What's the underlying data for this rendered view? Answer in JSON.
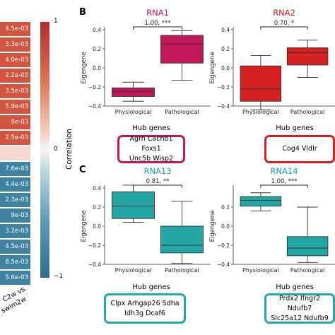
{
  "heatmap": {
    "values": [
      "4.5e-03",
      "3.3e-03",
      "4.0e-03",
      "2.2e-02",
      "3.5e-03",
      "5.9e-03",
      "9e-03",
      "2.5e-03",
      "",
      "7.6e-03",
      "4.4e-03",
      "2.3e-03",
      "9e-03",
      "3.2e-03",
      "4.5e-03",
      "8.5e-03",
      "5.6e-03"
    ],
    "colors": [
      "#d2553f",
      "#d2553f",
      "#d2553f",
      "#d2553f",
      "#d2553f",
      "#d2553f",
      "#d2553f",
      "#d2553f",
      "#f3d7d1",
      "#3e84a2",
      "#3e84a2",
      "#3e84a2",
      "#3e84a2",
      "#3e84a2",
      "#3e84a2",
      "#3e84a2",
      "#3e84a2"
    ],
    "xlabel_line1": "C2w vs.",
    "xlabel_line2": "swim2w",
    "colorbar": {
      "label": "Correlation",
      "tick_top": "1",
      "tick_mid": "0",
      "tick_bottom": "−1",
      "color_top": "#b22c2f",
      "color_bottom": "#2c6e8c"
    }
  },
  "panel_b_label": "B",
  "panel_c_label": "C",
  "hub_title": "Hub genes",
  "chart_data": [
    {
      "type": "box",
      "title": "RNA1",
      "title_color": "#c2185b",
      "box_color": "#c2185b",
      "categories": [
        "Physiological",
        "Pathological"
      ],
      "ylabel": "Eigengene",
      "ylim": [
        -0.4,
        0.4
      ],
      "yticks": [
        "−0.4",
        "−0.2",
        "0.0",
        "0.2",
        "0.4"
      ],
      "boxes": [
        {
          "whislo": -0.35,
          "q1": -0.3,
          "med": -0.25,
          "q3": -0.21,
          "whishi": -0.15
        },
        {
          "whislo": -0.13,
          "q1": 0.05,
          "med": 0.25,
          "q3": 0.34,
          "whishi": 0.39
        }
      ],
      "annotation": "1.00, ***",
      "hub_genes": [
        "Agrn  Cacnb1  Foxs1",
        "Unc5b  Wisp2"
      ]
    },
    {
      "type": "box",
      "title": "RNA2",
      "title_color": "#d42020",
      "box_color": "#d42020",
      "categories": [
        "Physiological",
        "Pathological"
      ],
      "ylabel": "Eigengene",
      "ylim": [
        -0.4,
        0.4
      ],
      "yticks": [
        "−0.4",
        "−0.2",
        "0.0",
        "0.2",
        "0.4"
      ],
      "boxes": [
        {
          "whislo": -0.44,
          "q1": -0.35,
          "med": -0.22,
          "q3": 0.02,
          "whishi": 0.13
        },
        {
          "whislo": -0.1,
          "q1": 0.03,
          "med": 0.16,
          "q3": 0.21,
          "whishi": 0.29
        }
      ],
      "annotation": "0.70, *",
      "hub_genes": [
        "Cog4  Vldlr"
      ]
    },
    {
      "type": "box",
      "title": "RNA13",
      "title_color": "#1aa3a3",
      "box_color": "#22a6a6",
      "categories": [
        "Physiological",
        "Pathological"
      ],
      "ylabel": "Eigengene",
      "ylim": [
        -0.4,
        0.4
      ],
      "yticks": [
        "−0.4",
        "−0.2",
        "0.0",
        "0.2",
        "0.4"
      ],
      "boxes": [
        {
          "whislo": 0.04,
          "q1": 0.08,
          "med": 0.21,
          "q3": 0.36,
          "whishi": 0.43
        },
        {
          "whislo": -0.39,
          "q1": -0.28,
          "med": -0.2,
          "q3": 0.0,
          "whishi": 0.26
        }
      ],
      "annotation": "0.81, **",
      "hub_genes": [
        "Clpx  Arhgap26  Sdha",
        "Idh3g  Dcaf6"
      ]
    },
    {
      "type": "box",
      "title": "RNA14",
      "title_color": "#1aa3a3",
      "box_color": "#22a6a6",
      "categories": [
        "Physiological",
        "Pathological"
      ],
      "ylabel": "Eigengene",
      "ylim": [
        -0.4,
        0.4
      ],
      "yticks": [
        "−0.4",
        "−0.2",
        "0.0",
        "0.2"
      ],
      "boxes": [
        {
          "whislo": 0.16,
          "q1": 0.21,
          "med": 0.27,
          "q3": 0.31,
          "whishi": 0.35
        },
        {
          "whislo": -0.38,
          "q1": -0.31,
          "med": -0.23,
          "q3": -0.11,
          "whishi": 0.2
        }
      ],
      "annotation": "1.00, ***",
      "hub_genes": [
        "Prdx2  Ifngr2  Ndufb7",
        "Slc25a12  Ndufb9"
      ]
    }
  ]
}
